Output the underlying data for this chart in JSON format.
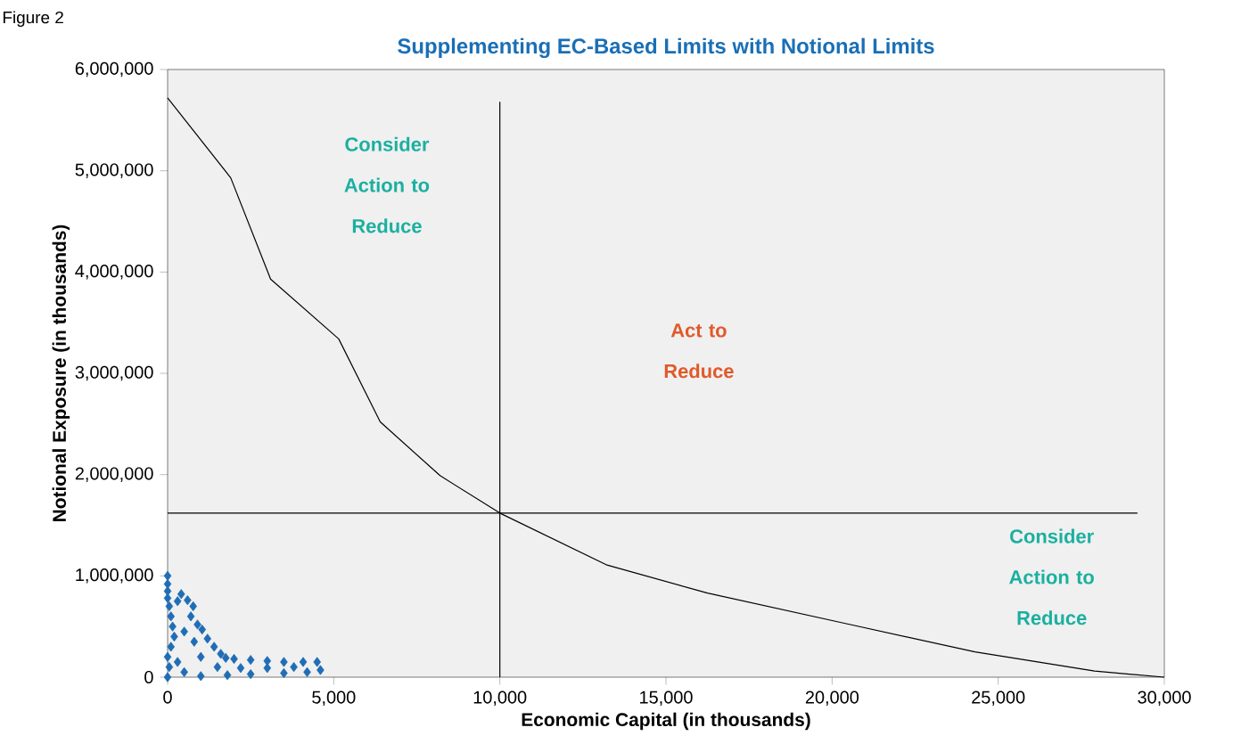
{
  "chart_data": {
    "type": "scatter",
    "title": "Supplementing EC-Based Limits with Notional Limits",
    "xlabel": "Economic Capital (in thousands)",
    "ylabel": "Notional Exposure (in thousands)",
    "xlim": [
      0,
      30000
    ],
    "ylim": [
      0,
      6000000
    ],
    "xticks": [
      0,
      {
        "value": 5000,
        "label": "5,000"
      },
      {
        "value": 10000,
        "label": "10,000"
      },
      {
        "value": 15000,
        "label": "15,000"
      },
      {
        "value": 20000,
        "label": "20,000"
      },
      {
        "value": 25000,
        "label": "25,000"
      },
      {
        "value": 30000,
        "label": "30,000"
      }
    ],
    "yticks": [
      0,
      {
        "value": 1000000,
        "label": "1,000,000"
      },
      {
        "value": 2000000,
        "label": "2,000,000"
      },
      {
        "value": 3000000,
        "label": "3,000,000"
      },
      {
        "value": 4000000,
        "label": "4,000,000"
      },
      {
        "value": 5000000,
        "label": "5,000,000"
      },
      {
        "value": 6000000,
        "label": "6,000,000"
      }
    ],
    "series": [
      {
        "marker": "diamond",
        "color": "#1f6db5",
        "x": [
          0,
          0,
          0,
          0,
          50,
          100,
          150,
          200,
          100,
          0,
          50,
          0,
          300,
          410,
          600,
          770,
          700,
          900,
          1040,
          1200,
          1400,
          1600,
          1750,
          1500,
          1000,
          800,
          500,
          2000,
          2500,
          3000,
          3500,
          4080,
          4500,
          4600,
          4200,
          3500,
          2500,
          1800,
          1000,
          500,
          300,
          2200,
          3000,
          3800
        ],
        "values": [
          1000000,
          920000,
          850000,
          780000,
          700000,
          600000,
          500000,
          400000,
          300000,
          200000,
          100000,
          0,
          750000,
          820000,
          760000,
          700000,
          600000,
          520000,
          470000,
          380000,
          300000,
          230000,
          190000,
          100000,
          200000,
          350000,
          450000,
          180000,
          170000,
          160000,
          150000,
          150000,
          150000,
          70000,
          50000,
          40000,
          30000,
          20000,
          10000,
          50000,
          150000,
          90000,
          90000,
          100000
        ]
      },
      {
        "type": "line",
        "marker": "none",
        "color": "#000000",
        "x": [
          0,
          1900,
          3100,
          5150,
          6400,
          8200,
          10000,
          13200,
          16250,
          20400,
          24300,
          27900,
          30000
        ],
        "values": [
          5720000,
          4930000,
          3930000,
          3340000,
          2520000,
          1990000,
          1620000,
          1110000,
          830000,
          530000,
          250000,
          60000,
          0
        ]
      }
    ],
    "ref_lines": [
      {
        "axis": "x",
        "value": 10000,
        "color": "#000000"
      },
      {
        "axis": "y",
        "value": 1620000,
        "color": "#000000"
      }
    ],
    "annotations": [
      "Consider Action to Reduce",
      "Act to Reduce",
      "Consider Action to Reduce",
      "Figure 2"
    ]
  }
}
